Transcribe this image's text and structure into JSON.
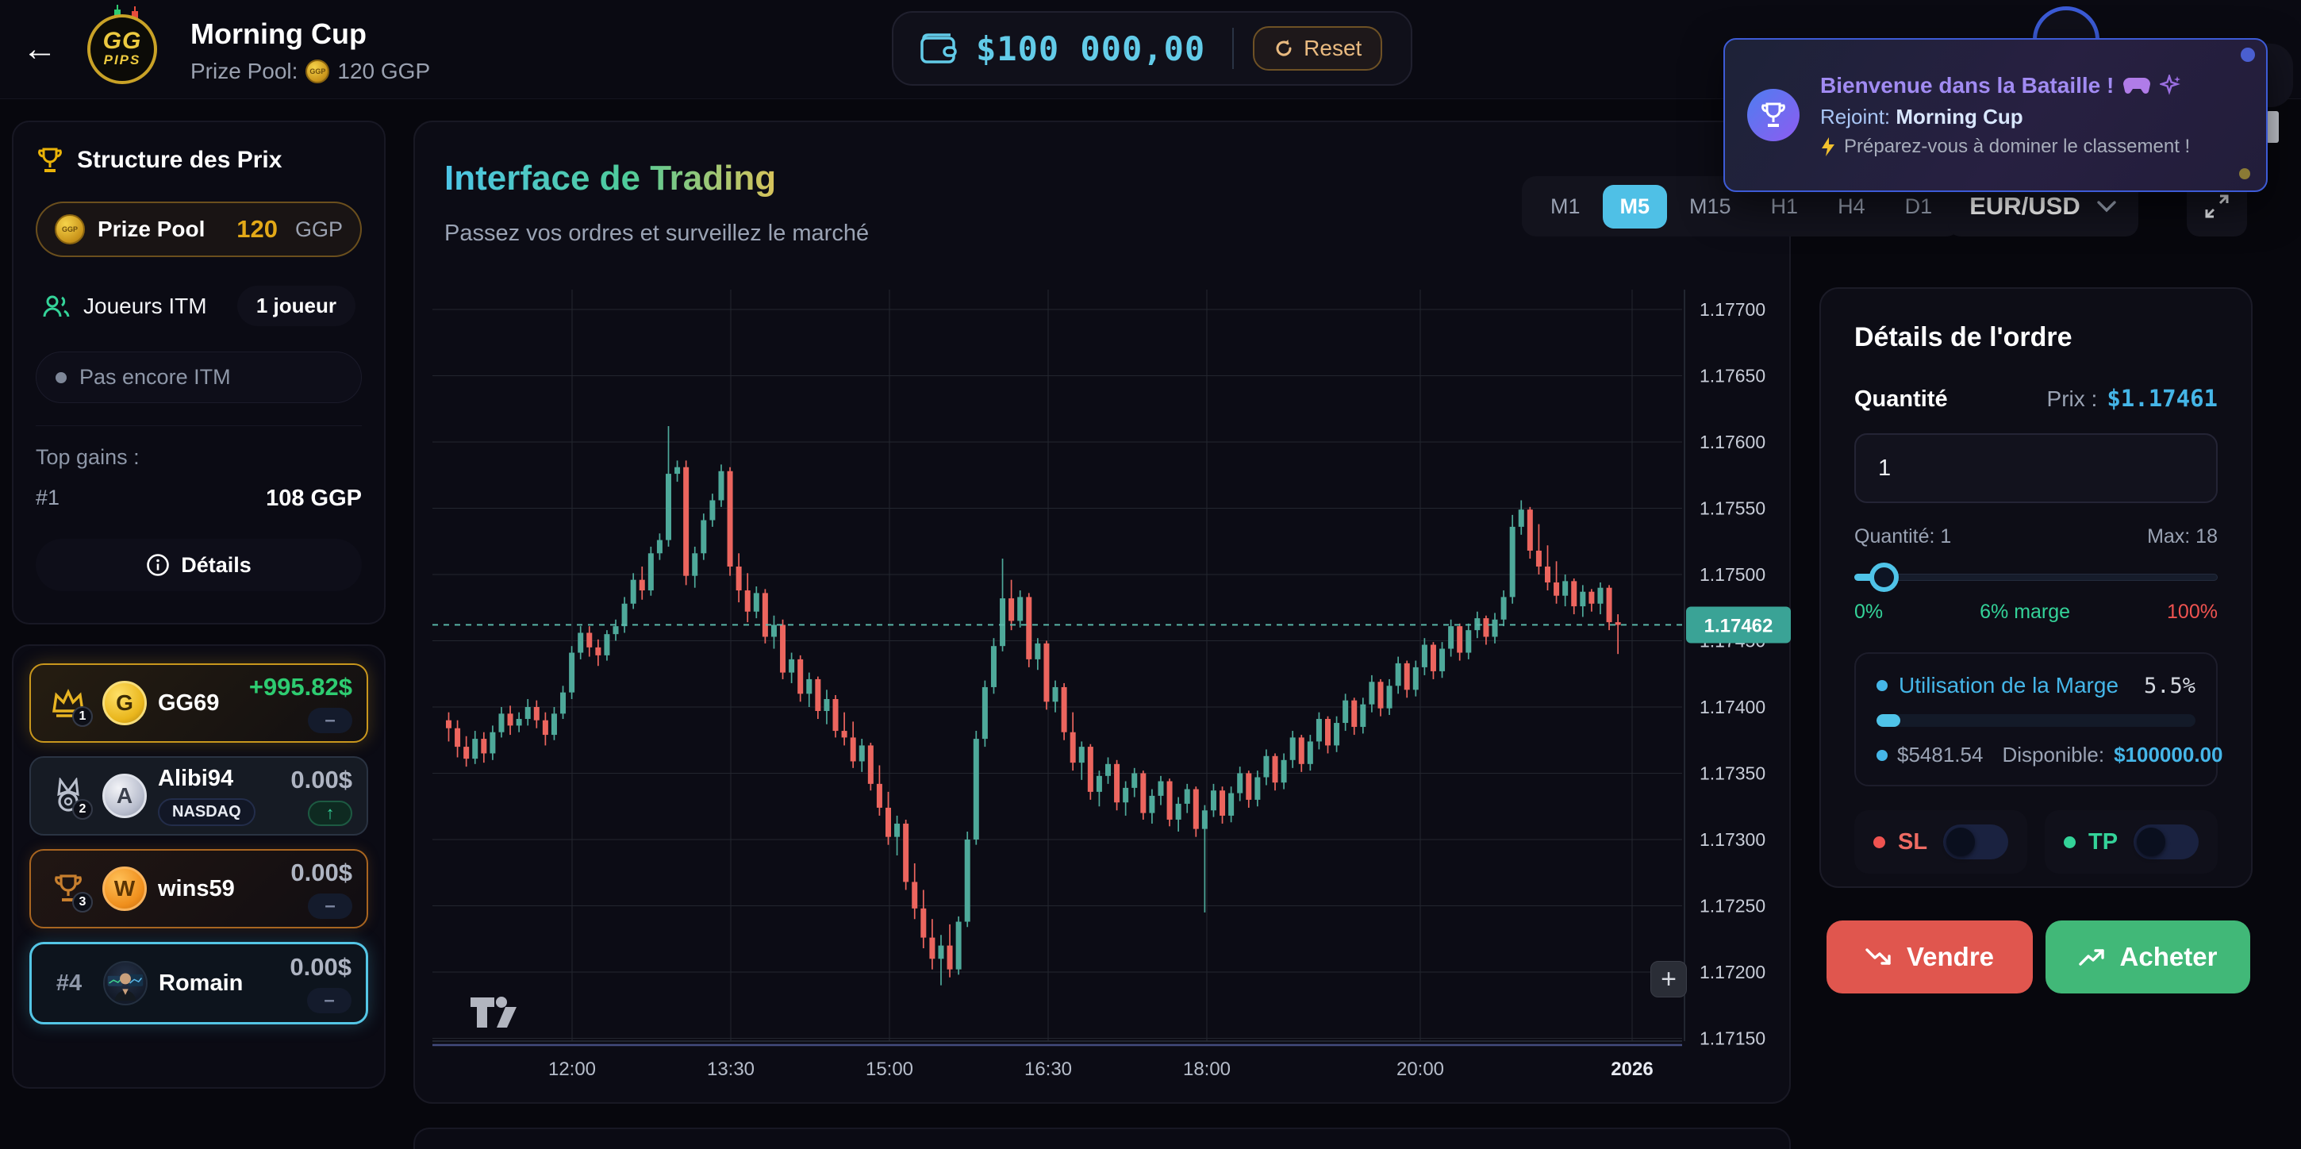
{
  "top_bar": {
    "back_icon": "←",
    "logo": {
      "line1": "GG",
      "line2": "PIPS"
    },
    "title": "Morning Cup",
    "prize_pool_label": "Prize Pool:",
    "prize_pool_value": "120 GGP",
    "wallet_balance": "$100 000,00",
    "reset_label": "Reset"
  },
  "toast": {
    "title": "Bienvenue dans la Bataille !",
    "joined_label": "Rejoint:",
    "joined_value": "Morning Cup",
    "subtitle": "Préparez-vous à dominer le classement !"
  },
  "prize_panel": {
    "title": "Structure des Prix",
    "prize_pool_label": "Prize Pool",
    "prize_pool_amount": "120",
    "prize_pool_currency": "GGP",
    "itm_label": "Joueurs ITM",
    "itm_value": "1 joueur",
    "not_itm_label": "Pas encore ITM",
    "top_gains_label": "Top gains :",
    "top_gains_rank": "#1",
    "top_gains_value": "108 GGP",
    "details_label": "Détails"
  },
  "leaderboard": [
    {
      "rank": "1",
      "name": "GG69",
      "initial": "G",
      "value": "+995.82$",
      "badge": "–"
    },
    {
      "rank": "2",
      "name": "Alibi94",
      "initial": "A",
      "tag": "NASDAQ",
      "value": "0.00$",
      "badge": "↑"
    },
    {
      "rank": "3",
      "name": "wins59",
      "initial": "W",
      "value": "0.00$",
      "badge": "–"
    },
    {
      "rank": "#4",
      "name": "Romain",
      "value": "0.00$",
      "badge": "–"
    }
  ],
  "chart": {
    "title": "Interface de Trading",
    "subtitle": "Passez vos ordres et surveillez le marché",
    "timeframes": [
      "M1",
      "M5",
      "M15",
      "H1",
      "H4",
      "D1"
    ],
    "selected_timeframe": "M5",
    "symbol": "EUR/USD",
    "current_price": "1.17462",
    "zoom_button": "+",
    "chart_data": {
      "type": "candlestick",
      "symbol": "EUR/USD",
      "timeframe": "M5",
      "price_base": 1.17,
      "price_unit": 1e-05,
      "ylim": [
        1.1715,
        1.177
      ],
      "grid": true,
      "price_ticks": [
        "1.17700",
        "1.17650",
        "1.17600",
        "1.17550",
        "1.17500",
        "1.17450",
        "1.17400",
        "1.17350",
        "1.17300",
        "1.17250",
        "1.17200",
        "1.17150"
      ],
      "time_labels": [
        {
          "label": "12:00",
          "x": 176
        },
        {
          "label": "13:30",
          "x": 376
        },
        {
          "label": "15:00",
          "x": 576
        },
        {
          "label": "16:30",
          "x": 776
        },
        {
          "label": "18:00",
          "x": 976
        },
        {
          "label": "20:00",
          "x": 1245
        },
        {
          "label": "2026",
          "x": 1512,
          "bold": true
        }
      ],
      "current_price_value": 462,
      "up_color": "#4ea99a",
      "down_color": "#ec655e",
      "dashed_line_color": "#5cbcae",
      "price_tag_color": "#3aa396",
      "candles_ohlc": [
        [
          390,
          396,
          374,
          384
        ],
        [
          384,
          390,
          362,
          370
        ],
        [
          370,
          378,
          355,
          361
        ],
        [
          361,
          382,
          357,
          376
        ],
        [
          376,
          381,
          358,
          365
        ],
        [
          365,
          386,
          360,
          381
        ],
        [
          381,
          400,
          377,
          395
        ],
        [
          395,
          401,
          379,
          386
        ],
        [
          386,
          396,
          381,
          391
        ],
        [
          391,
          406,
          386,
          400
        ],
        [
          400,
          405,
          384,
          390
        ],
        [
          390,
          396,
          371,
          379
        ],
        [
          379,
          400,
          375,
          395
        ],
        [
          395,
          416,
          391,
          411
        ],
        [
          411,
          446,
          406,
          441
        ],
        [
          441,
          461,
          436,
          456
        ],
        [
          456,
          461,
          438,
          445
        ],
        [
          445,
          451,
          431,
          439
        ],
        [
          439,
          458,
          435,
          455
        ],
        [
          455,
          466,
          450,
          461
        ],
        [
          461,
          483,
          456,
          478
        ],
        [
          478,
          501,
          474,
          496
        ],
        [
          496,
          506,
          481,
          488
        ],
        [
          488,
          521,
          484,
          516
        ],
        [
          516,
          531,
          511,
          526
        ],
        [
          526,
          612,
          521,
          576
        ],
        [
          576,
          586,
          570,
          581
        ],
        [
          581,
          586,
          492,
          499
        ],
        [
          499,
          521,
          490,
          516
        ],
        [
          516,
          546,
          511,
          541
        ],
        [
          541,
          561,
          536,
          556
        ],
        [
          556,
          583,
          551,
          578
        ],
        [
          578,
          581,
          499,
          506
        ],
        [
          506,
          516,
          479,
          488
        ],
        [
          488,
          501,
          464,
          472
        ],
        [
          472,
          491,
          467,
          486
        ],
        [
          486,
          489,
          448,
          453
        ],
        [
          453,
          469,
          444,
          462
        ],
        [
          462,
          466,
          421,
          426
        ],
        [
          426,
          441,
          418,
          436
        ],
        [
          436,
          439,
          404,
          410
        ],
        [
          410,
          426,
          400,
          421
        ],
        [
          421,
          423,
          391,
          397
        ],
        [
          397,
          413,
          387,
          406
        ],
        [
          406,
          409,
          377,
          382
        ],
        [
          382,
          396,
          371,
          377
        ],
        [
          377,
          389,
          354,
          359
        ],
        [
          359,
          376,
          351,
          371
        ],
        [
          371,
          373,
          337,
          342
        ],
        [
          342,
          356,
          318,
          324
        ],
        [
          324,
          336,
          296,
          302
        ],
        [
          302,
          318,
          288,
          312
        ],
        [
          312,
          315,
          262,
          268
        ],
        [
          268,
          282,
          240,
          248
        ],
        [
          248,
          262,
          218,
          226
        ],
        [
          226,
          240,
          202,
          210
        ],
        [
          210,
          228,
          190,
          220
        ],
        [
          220,
          236,
          196,
          202
        ],
        [
          202,
          242,
          198,
          238
        ],
        [
          238,
          306,
          234,
          300
        ],
        [
          300,
          382,
          296,
          376
        ],
        [
          376,
          420,
          370,
          415
        ],
        [
          415,
          452,
          410,
          446
        ],
        [
          446,
          512,
          442,
          482
        ],
        [
          482,
          496,
          458,
          465
        ],
        [
          465,
          488,
          460,
          483
        ],
        [
          483,
          486,
          430,
          436
        ],
        [
          436,
          452,
          428,
          448
        ],
        [
          448,
          450,
          398,
          404
        ],
        [
          404,
          420,
          396,
          415
        ],
        [
          415,
          418,
          375,
          381
        ],
        [
          381,
          396,
          352,
          358
        ],
        [
          358,
          374,
          345,
          370
        ],
        [
          370,
          372,
          330,
          336
        ],
        [
          336,
          352,
          325,
          348
        ],
        [
          348,
          362,
          342,
          357
        ],
        [
          357,
          360,
          322,
          328
        ],
        [
          328,
          344,
          318,
          339
        ],
        [
          339,
          354,
          332,
          350
        ],
        [
          350,
          352,
          315,
          320
        ],
        [
          320,
          338,
          312,
          333
        ],
        [
          333,
          348,
          326,
          344
        ],
        [
          344,
          346,
          310,
          315
        ],
        [
          315,
          332,
          306,
          327
        ],
        [
          327,
          342,
          320,
          338
        ],
        [
          338,
          340,
          302,
          308
        ],
        [
          308,
          326,
          245,
          322
        ],
        [
          322,
          342,
          317,
          337
        ],
        [
          337,
          340,
          312,
          318
        ],
        [
          318,
          340,
          313,
          335
        ],
        [
          335,
          355,
          329,
          350
        ],
        [
          350,
          352,
          324,
          330
        ],
        [
          330,
          352,
          325,
          347
        ],
        [
          347,
          368,
          341,
          363
        ],
        [
          363,
          365,
          337,
          343
        ],
        [
          343,
          365,
          338,
          360
        ],
        [
          360,
          382,
          354,
          377
        ],
        [
          377,
          379,
          351,
          357
        ],
        [
          357,
          379,
          352,
          374
        ],
        [
          374,
          396,
          368,
          391
        ],
        [
          391,
          393,
          365,
          371
        ],
        [
          371,
          393,
          366,
          388
        ],
        [
          388,
          410,
          382,
          405
        ],
        [
          405,
          407,
          379,
          385
        ],
        [
          385,
          407,
          380,
          402
        ],
        [
          402,
          424,
          396,
          419
        ],
        [
          419,
          421,
          393,
          399
        ],
        [
          399,
          421,
          394,
          416
        ],
        [
          416,
          438,
          410,
          433
        ],
        [
          433,
          435,
          407,
          413
        ],
        [
          413,
          435,
          408,
          430
        ],
        [
          430,
          452,
          424,
          447
        ],
        [
          447,
          449,
          421,
          427
        ],
        [
          427,
          449,
          422,
          444
        ],
        [
          444,
          466,
          438,
          461
        ],
        [
          461,
          463,
          435,
          441
        ],
        [
          441,
          463,
          436,
          458
        ],
        [
          458,
          472,
          452,
          467
        ],
        [
          467,
          469,
          447,
          453
        ],
        [
          453,
          471,
          448,
          466
        ],
        [
          466,
          488,
          461,
          483
        ],
        [
          483,
          545,
          478,
          536
        ],
        [
          536,
          556,
          530,
          549
        ],
        [
          549,
          551,
          512,
          518
        ],
        [
          518,
          538,
          500,
          506
        ],
        [
          506,
          522,
          488,
          494
        ],
        [
          494,
          510,
          478,
          484
        ],
        [
          484,
          500,
          476,
          495
        ],
        [
          495,
          497,
          470,
          476
        ],
        [
          476,
          492,
          468,
          487
        ],
        [
          487,
          489,
          472,
          478
        ],
        [
          478,
          494,
          470,
          490
        ],
        [
          490,
          492,
          458,
          464
        ],
        [
          464,
          470,
          440,
          462
        ]
      ]
    }
  },
  "order_panel": {
    "title": "Détails de l'ordre",
    "quantity_label": "Quantité",
    "price_label": "Prix :",
    "price_value": "$1.17461",
    "quantity_value": "1",
    "quantity_info": "Quantité: 1",
    "max_info": "Max: 18",
    "slider_fill_pct": 8,
    "range_min": "0%",
    "range_mid": "6% marge",
    "range_max": "100%",
    "margin_title": "Utilisation de la Marge",
    "margin_pct": "5.5%",
    "margin_bar_pct": 5.5,
    "margin_used": "$5481.54",
    "available_label": "Disponible:",
    "available_value": "$100000.00",
    "sl_label": "SL",
    "tp_label": "TP",
    "sell_label": "Vendre",
    "buy_label": "Acheter"
  },
  "colors": {
    "accent_cyan": "#4fc3e8",
    "accent_gold": "#e3a918",
    "gain_green": "#2ecc71",
    "sell_red": "#e0564e",
    "buy_green": "#41b878"
  }
}
